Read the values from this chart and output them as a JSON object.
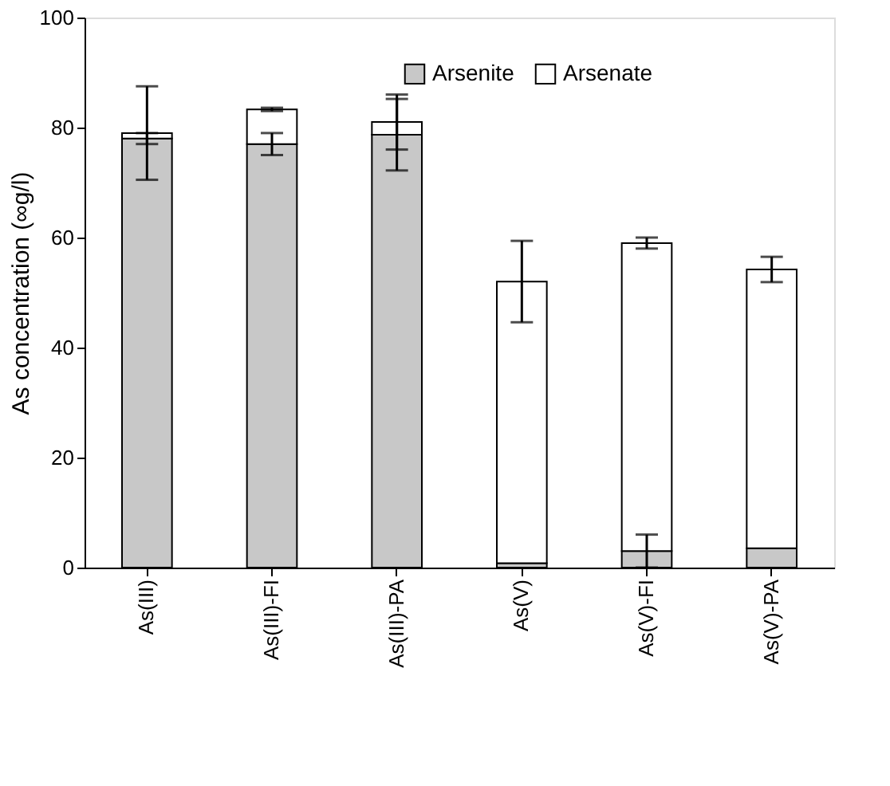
{
  "chart_data": {
    "type": "bar",
    "stacked": true,
    "ylabel": "As concentration (∞g/l)",
    "categories": [
      "As(III)",
      "As(III)-FI",
      "As(III)-PA",
      "As(V)",
      "As(V)-FI",
      "As(V)-PA"
    ],
    "series": [
      {
        "name": "Arsenite",
        "color": "#c8c8c8",
        "values": [
          78,
          77,
          78.7,
          0.8,
          3,
          3.5
        ],
        "errors": [
          1,
          2,
          6.5,
          null,
          3,
          null
        ]
      },
      {
        "name": "Arsenate",
        "color": "#ffffff",
        "values": [
          1,
          6.3,
          2.3,
          51.2,
          56,
          50.7
        ],
        "errors": [
          8.5,
          0.3,
          5,
          7.4,
          1,
          2.3
        ]
      }
    ],
    "ylim": [
      0,
      100
    ],
    "yticks": [
      0,
      20,
      40,
      60,
      80,
      100
    ],
    "grid": false,
    "legend": "top"
  }
}
